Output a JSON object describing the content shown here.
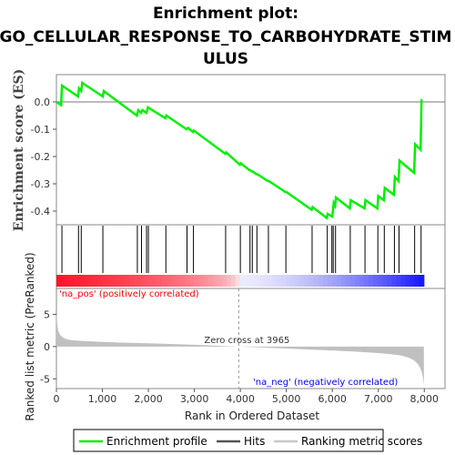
{
  "chart_data": {
    "type": "line",
    "title_lines": [
      "Enrichment plot:",
      "GO_CELLULAR_RESPONSE_TO_CARBOHYDRATE_STIM",
      "ULUS"
    ],
    "top_panel": {
      "ylabel": "Enrichment score (ES)",
      "ylim": [
        -0.45,
        0.1
      ],
      "yticks": [
        "0.0",
        "-0.1",
        "-0.2",
        "-0.3",
        "-0.4"
      ],
      "ytick_values": [
        0.0,
        -0.1,
        -0.2,
        -0.3,
        -0.4
      ],
      "series": [
        {
          "name": "Enrichment profile",
          "color": "#00ee00",
          "x": [
            0,
            100,
            120,
            470,
            490,
            540,
            560,
            1010,
            1030,
            1750,
            1780,
            1840,
            1870,
            1960,
            1990,
            2370,
            2390,
            2830,
            2860,
            2970,
            2990,
            3670,
            3690,
            3990,
            4010,
            4200,
            4220,
            4250,
            4270,
            4350,
            4370,
            4600,
            4620,
            4980,
            5000,
            5550,
            5570,
            5880,
            5900,
            6000,
            6030,
            6060,
            6080,
            6380,
            6400,
            6700,
            6720,
            6980,
            7000,
            7120,
            7140,
            7340,
            7360,
            7440,
            7460,
            7780,
            7800,
            7920,
            7940,
            7960
          ],
          "y": [
            0.0,
            -0.012,
            0.06,
            0.02,
            0.05,
            0.04,
            0.07,
            0.02,
            0.04,
            -0.05,
            -0.03,
            -0.04,
            -0.03,
            -0.04,
            -0.02,
            -0.06,
            -0.05,
            -0.1,
            -0.095,
            -0.11,
            -0.105,
            -0.19,
            -0.185,
            -0.23,
            -0.225,
            -0.25,
            -0.25,
            -0.255,
            -0.255,
            -0.265,
            -0.265,
            -0.29,
            -0.29,
            -0.33,
            -0.33,
            -0.395,
            -0.385,
            -0.425,
            -0.41,
            -0.42,
            -0.37,
            -0.38,
            -0.35,
            -0.39,
            -0.36,
            -0.39,
            -0.36,
            -0.39,
            -0.345,
            -0.36,
            -0.315,
            -0.34,
            -0.275,
            -0.29,
            -0.215,
            -0.26,
            -0.155,
            -0.175,
            0.005,
            0.003
          ]
        }
      ]
    },
    "hits": [
      120,
      480,
      540,
      1010,
      1760,
      1850,
      1960,
      2000,
      2380,
      2840,
      2980,
      3680,
      4000,
      4210,
      4260,
      4360,
      4610,
      4990,
      5560,
      5890,
      5990,
      6020,
      6070,
      6390,
      6710,
      6990,
      7130,
      7350,
      7450,
      7790,
      7930
    ],
    "hits_label": "Hits",
    "bottom_panel": {
      "ylabel": "Ranked list metric (PreRanked)",
      "xlabel": "Rank in Ordered Dataset",
      "ylim": [
        -6.5,
        9
      ],
      "yticks": [
        "5",
        "0",
        "-5"
      ],
      "ytick_values": [
        5,
        0,
        -5
      ],
      "xticks": [
        "0",
        "1,000",
        "2,000",
        "3,000",
        "4,000",
        "5,000",
        "6,000",
        "7,000",
        "8,000"
      ],
      "xtick_values": [
        0,
        1000,
        2000,
        3000,
        4000,
        5000,
        6000,
        7000,
        8000
      ],
      "xlim": [
        0,
        8450
      ],
      "n_genes": 7990,
      "zero_cross": 3965,
      "zero_cross_label": "Zero cross at 3965",
      "pos_label": "'na_pos' (positively correlated)",
      "neg_label": "'na_neg' (negatively correlated)",
      "pos_color": "#ff0000",
      "neg_color": "#0000ff",
      "fill_color": "#c0c0c0",
      "metric_curve": {
        "x": [
          0,
          15,
          40,
          80,
          150,
          250,
          400,
          600,
          1000,
          1500,
          2000,
          2500,
          3000,
          3500,
          3965,
          4500,
          5000,
          5500,
          6000,
          6500,
          7000,
          7300,
          7500,
          7650,
          7750,
          7820,
          7870,
          7910,
          7950,
          7975,
          7990
        ],
        "y": [
          5.2,
          3.6,
          2.4,
          1.8,
          1.35,
          1.1,
          0.95,
          0.85,
          0.72,
          0.6,
          0.5,
          0.4,
          0.28,
          0.13,
          0.0,
          -0.15,
          -0.3,
          -0.45,
          -0.6,
          -0.78,
          -1.0,
          -1.2,
          -1.4,
          -1.7,
          -2.0,
          -2.4,
          -2.8,
          -3.3,
          -4.0,
          -5.0,
          -6.0
        ]
      }
    },
    "legend": [
      {
        "label": "Enrichment profile",
        "color": "#00ee00"
      },
      {
        "label": "Hits",
        "color": "#555555"
      },
      {
        "label": "Ranking metric scores",
        "color": "#c8c8c8"
      }
    ]
  }
}
